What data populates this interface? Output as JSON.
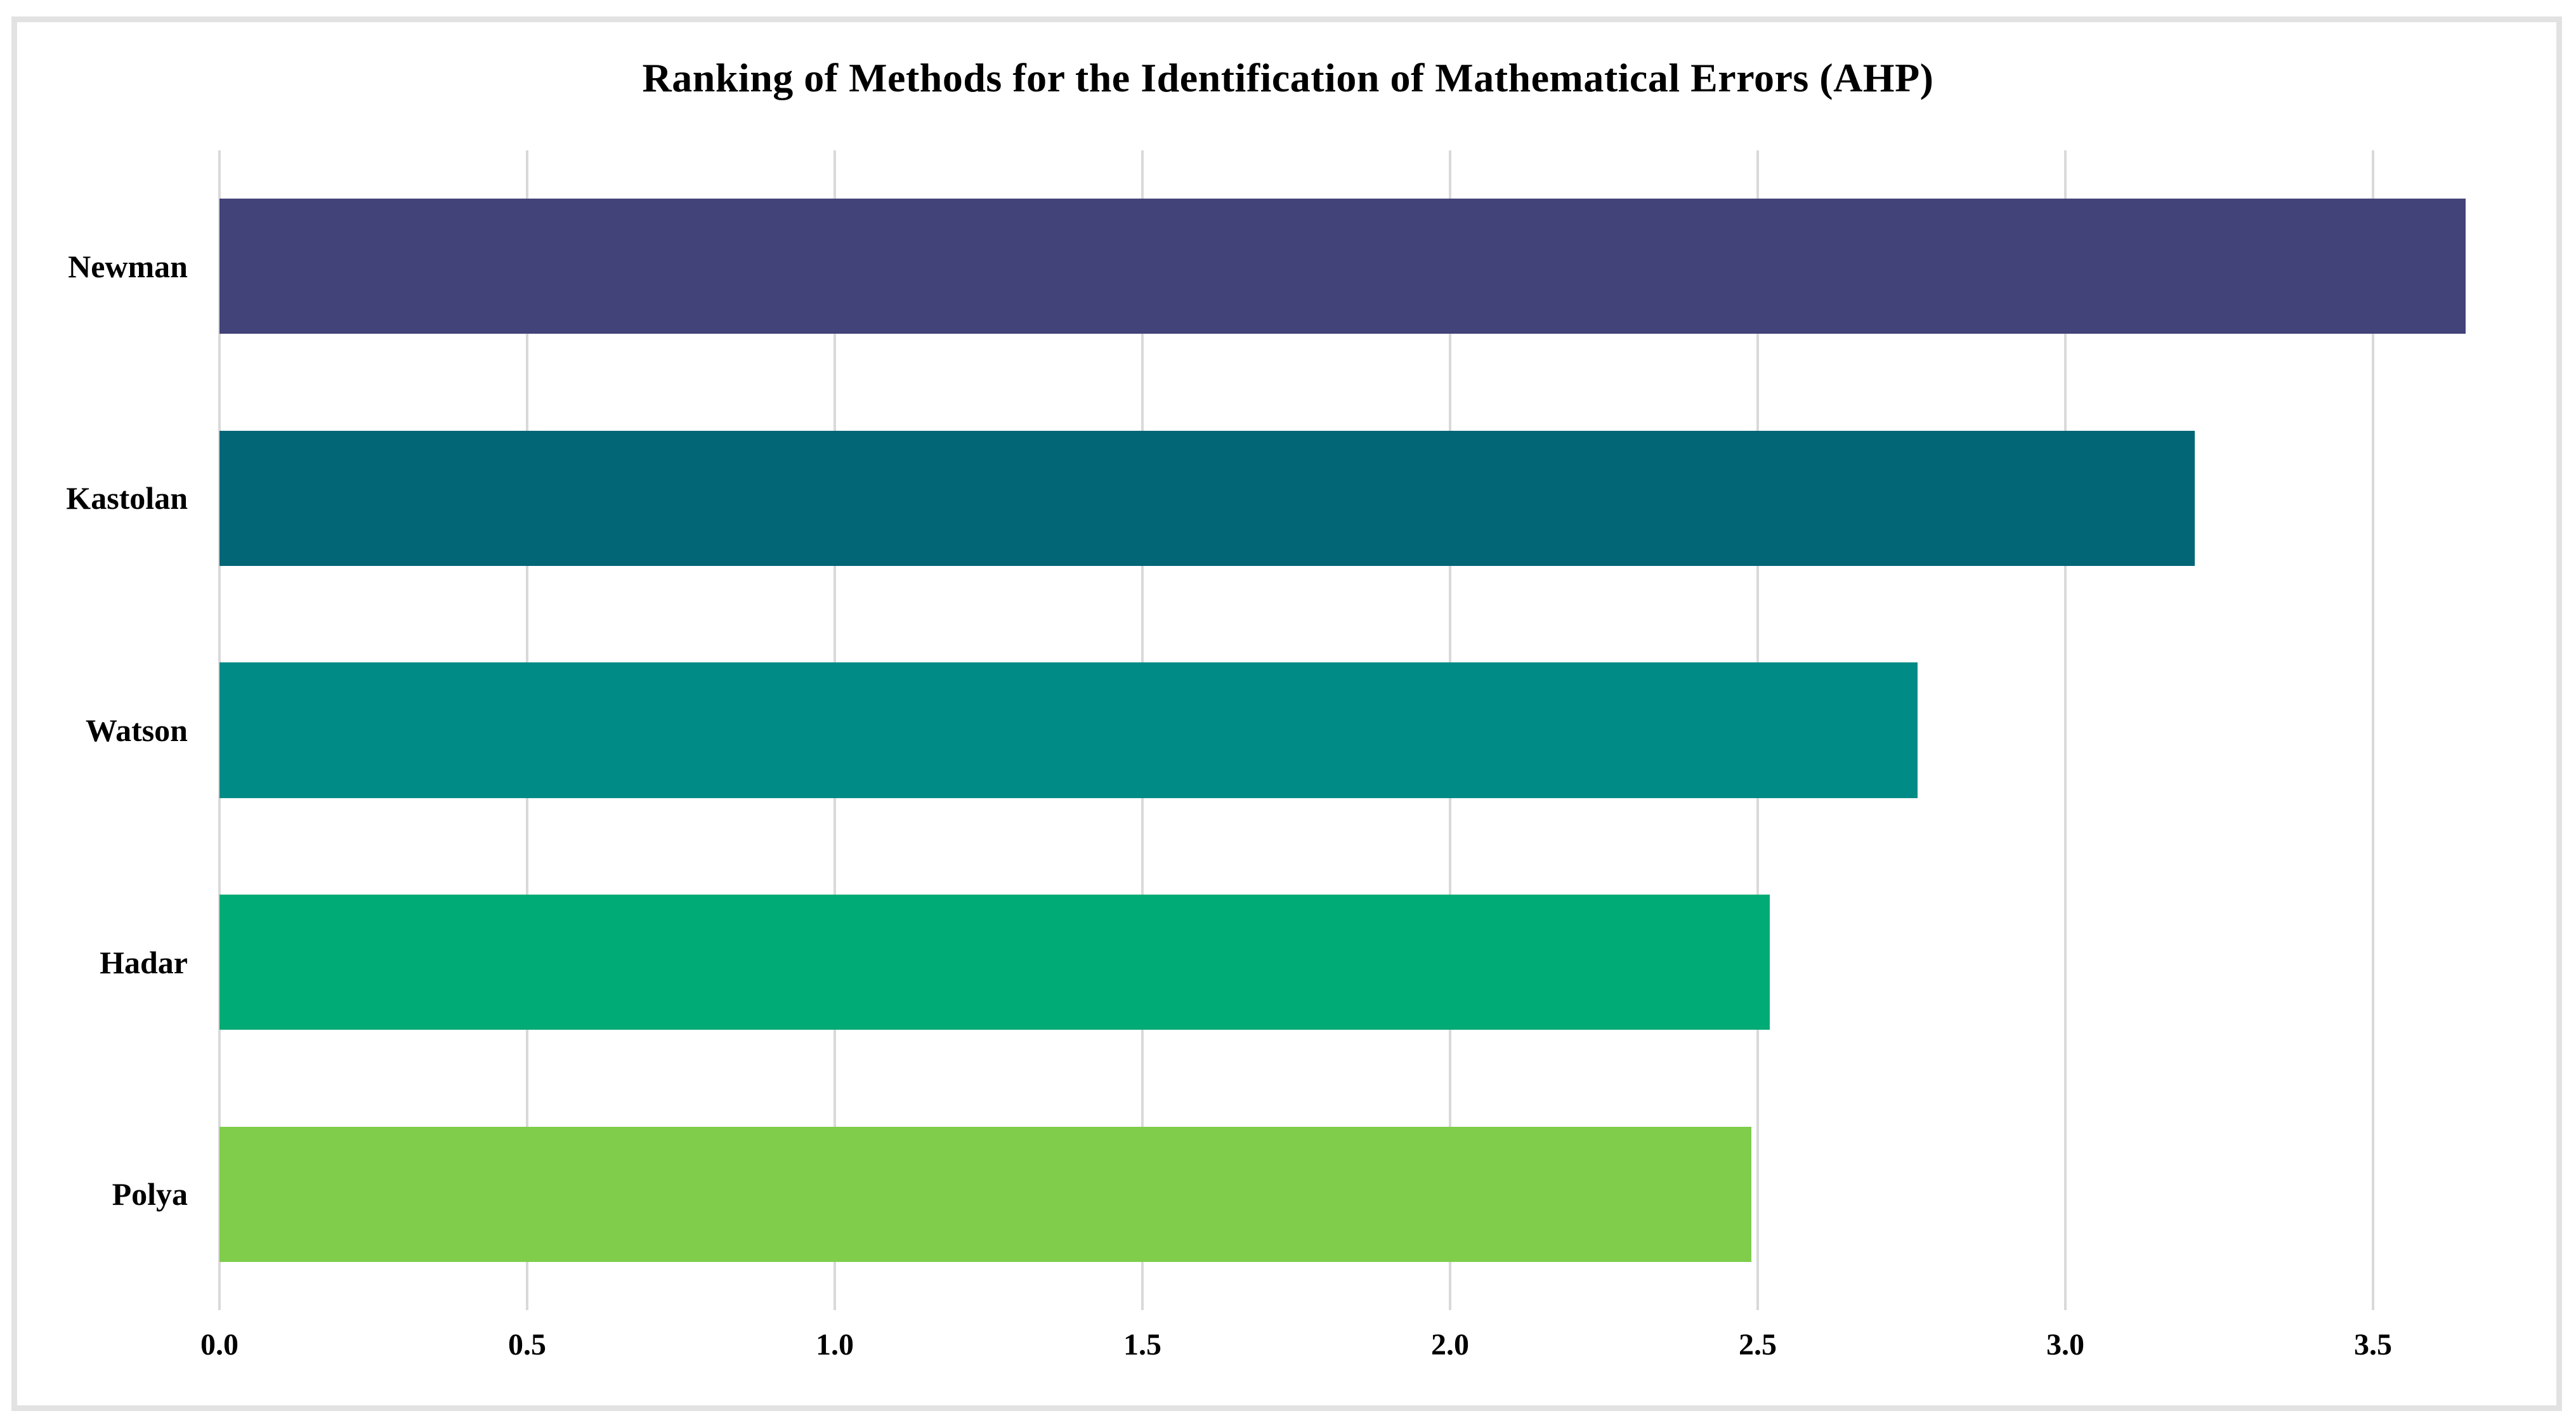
{
  "chart_data": {
    "type": "bar",
    "orientation": "horizontal",
    "title": "Ranking of Methods for the Identification of Mathematical Errors (AHP)",
    "categories": [
      "Newman",
      "Kastolan",
      "Watson",
      "Hadar",
      "Polya"
    ],
    "values": [
      3.65,
      3.21,
      2.76,
      2.52,
      2.49
    ],
    "bar_colors": [
      "#424378",
      "#036677",
      "#018B87",
      "#01AB75",
      "#7FCD4B"
    ],
    "xlabel": "",
    "ylabel": "",
    "xlim": [
      0,
      3.8
    ],
    "xtick_labels": [
      "0.0",
      "0.5",
      "1.0",
      "1.5",
      "2.0",
      "2.5",
      "3.0",
      "3.5"
    ],
    "xtick_values": [
      0,
      0.5,
      1.0,
      1.5,
      2.0,
      2.5,
      3.0,
      3.5
    ],
    "grid": "vertical-only",
    "gridline_color": "#D9D9D9",
    "frame_color": "#E2E2E2",
    "background_color": "#FFFFFF",
    "legend": "none",
    "data_labels": "none"
  }
}
